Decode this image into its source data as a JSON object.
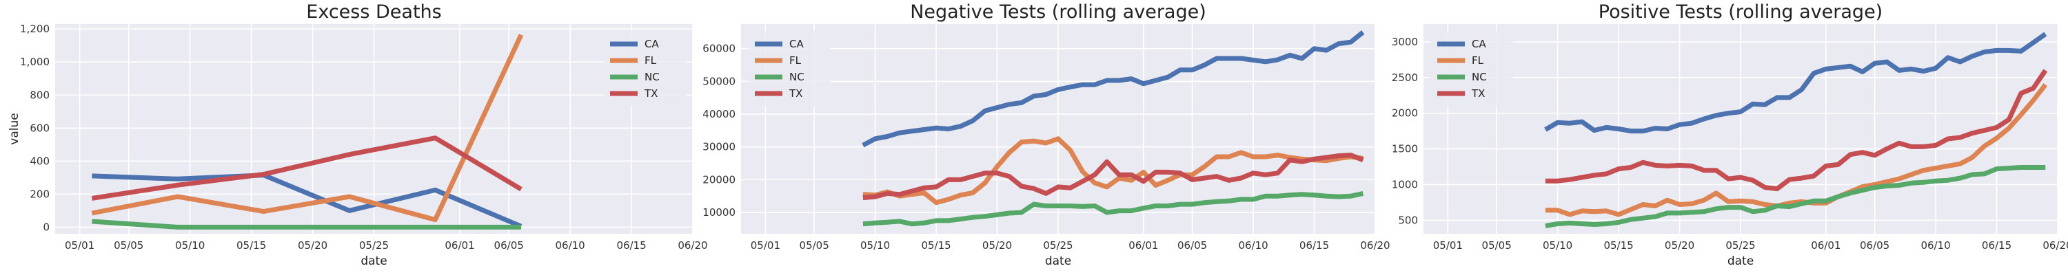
{
  "colors": {
    "CA": "#4c72b0",
    "FL": "#dd8452",
    "NC": "#55a868",
    "TX": "#c44e52",
    "plot_bg": "#eaeaf2",
    "grid": "#ffffff"
  },
  "chart_data": [
    {
      "type": "line",
      "title": "Excess Deaths",
      "xlabel": "date",
      "ylabel": "value",
      "x_ticks": [
        "05/01",
        "05/05",
        "05/10",
        "05/15",
        "05/20",
        "05/25",
        "06/01",
        "06/05",
        "06/10",
        "06/15",
        "06/20"
      ],
      "y_ticks": [
        "0",
        "200",
        "400",
        "600",
        "800",
        "1,000",
        "1,200"
      ],
      "xlim": [
        "2020-04-29",
        "2020-06-20"
      ],
      "ylim": [
        -40,
        1230
      ],
      "legend": "top-right",
      "series": [
        {
          "name": "CA",
          "x": [
            "2020-05-02",
            "2020-05-09",
            "2020-05-16",
            "2020-05-23",
            "2020-05-30",
            "2020-06-06"
          ],
          "values": [
            310,
            292,
            315,
            100,
            225,
            5
          ]
        },
        {
          "name": "FL",
          "x": [
            "2020-05-02",
            "2020-05-09",
            "2020-05-16",
            "2020-05-23",
            "2020-05-30",
            "2020-06-06"
          ],
          "values": [
            85,
            185,
            95,
            185,
            45,
            1165
          ]
        },
        {
          "name": "NC",
          "x": [
            "2020-05-02",
            "2020-05-09",
            "2020-05-16",
            "2020-05-23",
            "2020-05-30",
            "2020-06-06"
          ],
          "values": [
            35,
            0,
            0,
            0,
            0,
            0
          ]
        },
        {
          "name": "TX",
          "x": [
            "2020-05-02",
            "2020-05-09",
            "2020-05-16",
            "2020-05-23",
            "2020-05-30",
            "2020-06-06"
          ],
          "values": [
            175,
            255,
            320,
            440,
            540,
            230
          ]
        }
      ]
    },
    {
      "type": "line",
      "title": "Negative Tests (rolling average)",
      "xlabel": "date",
      "ylabel": "",
      "x_ticks": [
        "05/01",
        "05/05",
        "05/10",
        "05/15",
        "05/20",
        "05/25",
        "06/01",
        "06/05",
        "06/10",
        "06/15",
        "06/20"
      ],
      "y_ticks": [
        "10000",
        "20000",
        "30000",
        "40000",
        "50000",
        "60000"
      ],
      "xlim": [
        "2020-04-29",
        "2020-06-20"
      ],
      "ylim": [
        3500,
        67500
      ],
      "legend": "top-left",
      "x_start": "2020-05-09",
      "series": [
        {
          "name": "CA",
          "values": [
            30500,
            32500,
            33200,
            34300,
            34800,
            35300,
            35800,
            35500,
            36300,
            38000,
            41000,
            42000,
            43000,
            43500,
            45500,
            46000,
            47500,
            48300,
            49000,
            49000,
            50300,
            50300,
            50800,
            49300,
            50300,
            51300,
            53500,
            53500,
            55000,
            57000,
            57000,
            57000,
            56500,
            56000,
            56600,
            58000,
            57000,
            60000,
            59500,
            61500,
            62000,
            65000
          ]
        },
        {
          "name": "FL",
          "values": [
            15500,
            15300,
            16300,
            15000,
            15500,
            16000,
            13000,
            14000,
            15300,
            16000,
            19000,
            24000,
            28300,
            31500,
            31800,
            31200,
            32500,
            29000,
            22500,
            19000,
            17800,
            20500,
            19800,
            22300,
            18300,
            19800,
            21500,
            21500,
            24000,
            27000,
            27000,
            28300,
            27000,
            27000,
            27500,
            26800,
            26300,
            26000,
            25800,
            26500,
            27000,
            26500
          ]
        },
        {
          "name": "NC",
          "values": [
            6500,
            6800,
            7000,
            7300,
            6500,
            6800,
            7500,
            7500,
            8000,
            8500,
            8800,
            9300,
            9800,
            10000,
            12500,
            12000,
            12000,
            12000,
            11800,
            12000,
            10000,
            10500,
            10500,
            11300,
            12000,
            12000,
            12500,
            12500,
            13000,
            13300,
            13500,
            14000,
            14000,
            15000,
            15000,
            15300,
            15500,
            15300,
            15000,
            14800,
            15000,
            15800
          ]
        },
        {
          "name": "TX",
          "values": [
            14500,
            14800,
            15800,
            15500,
            16500,
            17500,
            17800,
            20000,
            20000,
            21000,
            22000,
            22000,
            21000,
            18000,
            17300,
            15800,
            17800,
            17500,
            19500,
            21500,
            25500,
            21500,
            21500,
            19500,
            22300,
            22300,
            22000,
            20000,
            20500,
            21000,
            19800,
            20500,
            22000,
            21500,
            22000,
            26000,
            25500,
            26300,
            26800,
            27300,
            27500,
            26000
          ]
        }
      ]
    },
    {
      "type": "line",
      "title": "Positive Tests (rolling average)",
      "xlabel": "date",
      "ylabel": "",
      "x_ticks": [
        "05/01",
        "05/05",
        "05/10",
        "05/15",
        "05/20",
        "05/25",
        "06/01",
        "06/05",
        "06/10",
        "06/15",
        "06/20"
      ],
      "y_ticks": [
        "500",
        "1000",
        "1500",
        "2000",
        "2500",
        "3000"
      ],
      "xlim": [
        "2020-04-29",
        "2020-06-20"
      ],
      "ylim": [
        310,
        3250
      ],
      "legend": "top-left",
      "x_start": "2020-05-09",
      "series": [
        {
          "name": "CA",
          "values": [
            1770,
            1870,
            1860,
            1880,
            1760,
            1800,
            1780,
            1750,
            1750,
            1790,
            1780,
            1840,
            1860,
            1920,
            1970,
            2000,
            2020,
            2130,
            2120,
            2220,
            2220,
            2330,
            2560,
            2620,
            2640,
            2660,
            2580,
            2700,
            2720,
            2600,
            2620,
            2590,
            2630,
            2780,
            2720,
            2800,
            2860,
            2880,
            2880,
            2870,
            2990,
            3110
          ]
        },
        {
          "name": "FL",
          "values": [
            640,
            640,
            580,
            630,
            620,
            630,
            580,
            650,
            720,
            700,
            780,
            720,
            730,
            780,
            880,
            760,
            770,
            760,
            720,
            700,
            740,
            760,
            740,
            740,
            830,
            900,
            970,
            1000,
            1040,
            1080,
            1140,
            1200,
            1230,
            1260,
            1290,
            1380,
            1540,
            1650,
            1790,
            1980,
            2180,
            2400
          ]
        },
        {
          "name": "NC",
          "values": [
            420,
            450,
            460,
            450,
            440,
            450,
            470,
            510,
            530,
            550,
            600,
            600,
            610,
            620,
            660,
            680,
            680,
            620,
            640,
            700,
            690,
            730,
            770,
            770,
            830,
            880,
            920,
            960,
            980,
            990,
            1020,
            1030,
            1050,
            1060,
            1090,
            1140,
            1150,
            1220,
            1230,
            1240,
            1240,
            1240
          ]
        },
        {
          "name": "TX",
          "values": [
            1050,
            1050,
            1070,
            1100,
            1130,
            1150,
            1220,
            1240,
            1310,
            1270,
            1260,
            1270,
            1260,
            1200,
            1200,
            1080,
            1100,
            1060,
            960,
            940,
            1070,
            1090,
            1120,
            1260,
            1280,
            1420,
            1450,
            1410,
            1500,
            1580,
            1530,
            1530,
            1550,
            1640,
            1660,
            1720,
            1760,
            1800,
            1910,
            2280,
            2350,
            2600
          ]
        }
      ]
    }
  ]
}
